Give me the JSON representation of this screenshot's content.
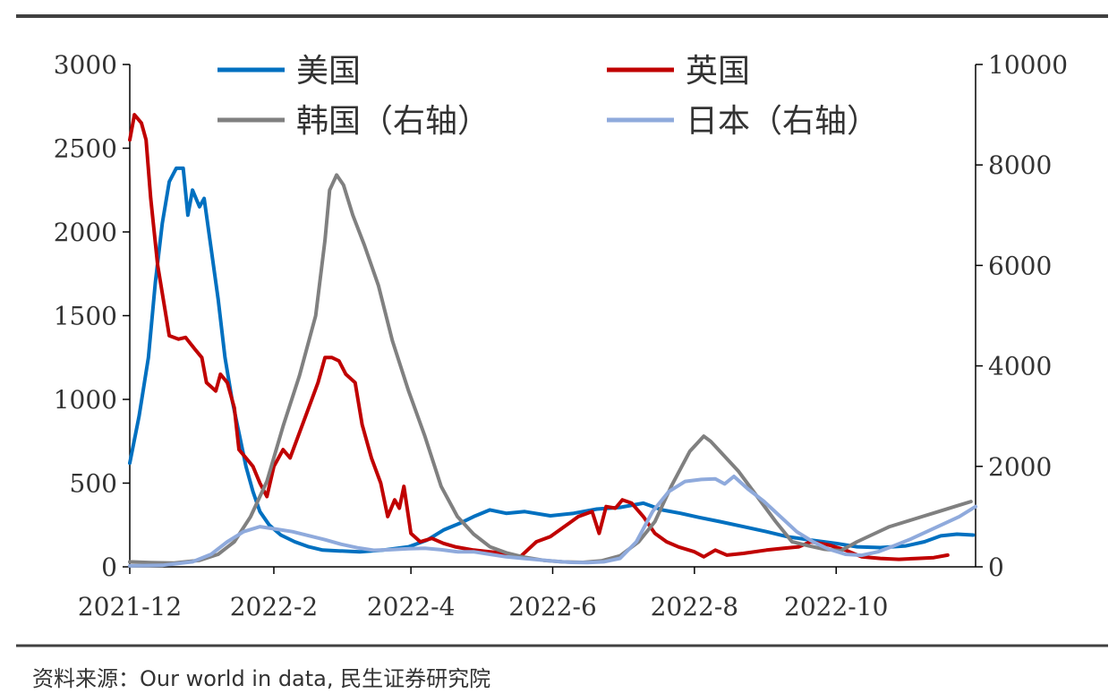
{
  "source_note": "资料来源：Our world in data, 民生证券研究院",
  "chart_data": {
    "type": "line",
    "x_ticks": [
      "2021-12",
      "2022-2",
      "2022-4",
      "2022-6",
      "2022-8",
      "2022-10"
    ],
    "x_range": [
      "2021-12-01",
      "2022-11-30"
    ],
    "y_left": {
      "range": [
        0,
        3000
      ],
      "ticks": [
        0,
        500,
        1000,
        1500,
        2000,
        2500,
        3000
      ]
    },
    "y_right": {
      "range": [
        0,
        10000
      ],
      "ticks": [
        0,
        2000,
        4000,
        6000,
        8000,
        10000
      ]
    },
    "legend_position": "top",
    "series": [
      {
        "name": "美国",
        "axis": "left",
        "color": "#0070C0",
        "points": [
          [
            "2021-12-01",
            620
          ],
          [
            "2021-12-05",
            900
          ],
          [
            "2021-12-09",
            1250
          ],
          [
            "2021-12-12",
            1700
          ],
          [
            "2021-12-15",
            2050
          ],
          [
            "2021-12-18",
            2300
          ],
          [
            "2021-12-21",
            2380
          ],
          [
            "2021-12-24",
            2380
          ],
          [
            "2021-12-26",
            2100
          ],
          [
            "2021-12-28",
            2250
          ],
          [
            "2021-12-31",
            2150
          ],
          [
            "2022-01-02",
            2200
          ],
          [
            "2022-01-05",
            1900
          ],
          [
            "2022-01-08",
            1600
          ],
          [
            "2022-01-11",
            1250
          ],
          [
            "2022-01-14",
            1000
          ],
          [
            "2022-01-17",
            800
          ],
          [
            "2022-01-20",
            600
          ],
          [
            "2022-01-23",
            450
          ],
          [
            "2022-01-26",
            330
          ],
          [
            "2022-01-30",
            250
          ],
          [
            "2022-02-04",
            190
          ],
          [
            "2022-02-10",
            150
          ],
          [
            "2022-02-16",
            120
          ],
          [
            "2022-02-22",
            100
          ],
          [
            "2022-03-01",
            95
          ],
          [
            "2022-03-10",
            90
          ],
          [
            "2022-03-20",
            100
          ],
          [
            "2022-03-31",
            120
          ],
          [
            "2022-04-08",
            160
          ],
          [
            "2022-04-15",
            220
          ],
          [
            "2022-04-22",
            260
          ],
          [
            "2022-04-28",
            300
          ],
          [
            "2022-05-05",
            340
          ],
          [
            "2022-05-12",
            320
          ],
          [
            "2022-05-20",
            330
          ],
          [
            "2022-05-31",
            305
          ],
          [
            "2022-06-10",
            320
          ],
          [
            "2022-06-20",
            345
          ],
          [
            "2022-06-30",
            355
          ],
          [
            "2022-07-10",
            380
          ],
          [
            "2022-07-18",
            340
          ],
          [
            "2022-07-26",
            320
          ],
          [
            "2022-08-03",
            295
          ],
          [
            "2022-08-12",
            270
          ],
          [
            "2022-08-22",
            240
          ],
          [
            "2022-09-01",
            210
          ],
          [
            "2022-09-10",
            180
          ],
          [
            "2022-09-20",
            160
          ],
          [
            "2022-10-01",
            140
          ],
          [
            "2022-10-10",
            120
          ],
          [
            "2022-10-20",
            115
          ],
          [
            "2022-10-31",
            125
          ],
          [
            "2022-11-08",
            150
          ],
          [
            "2022-11-15",
            185
          ],
          [
            "2022-11-22",
            195
          ],
          [
            "2022-11-29",
            190
          ]
        ]
      },
      {
        "name": "英国",
        "axis": "left",
        "color": "#C00000",
        "points": [
          [
            "2021-12-01",
            2550
          ],
          [
            "2021-12-03",
            2700
          ],
          [
            "2021-12-06",
            2650
          ],
          [
            "2021-12-08",
            2550
          ],
          [
            "2021-12-10",
            2200
          ],
          [
            "2021-12-13",
            1800
          ],
          [
            "2021-12-16",
            1550
          ],
          [
            "2021-12-18",
            1380
          ],
          [
            "2021-12-22",
            1360
          ],
          [
            "2021-12-25",
            1370
          ],
          [
            "2021-12-29",
            1300
          ],
          [
            "2022-01-01",
            1250
          ],
          [
            "2022-01-03",
            1100
          ],
          [
            "2022-01-07",
            1050
          ],
          [
            "2022-01-09",
            1150
          ],
          [
            "2022-01-12",
            1100
          ],
          [
            "2022-01-15",
            950
          ],
          [
            "2022-01-17",
            700
          ],
          [
            "2022-01-20",
            650
          ],
          [
            "2022-01-23",
            600
          ],
          [
            "2022-01-26",
            500
          ],
          [
            "2022-01-29",
            420
          ],
          [
            "2022-02-01",
            600
          ],
          [
            "2022-02-05",
            700
          ],
          [
            "2022-02-08",
            650
          ],
          [
            "2022-02-12",
            800
          ],
          [
            "2022-02-16",
            950
          ],
          [
            "2022-02-20",
            1100
          ],
          [
            "2022-02-23",
            1250
          ],
          [
            "2022-02-26",
            1250
          ],
          [
            "2022-03-01",
            1230
          ],
          [
            "2022-03-04",
            1150
          ],
          [
            "2022-03-08",
            1100
          ],
          [
            "2022-03-11",
            850
          ],
          [
            "2022-03-15",
            650
          ],
          [
            "2022-03-19",
            500
          ],
          [
            "2022-03-22",
            300
          ],
          [
            "2022-03-25",
            400
          ],
          [
            "2022-03-27",
            350
          ],
          [
            "2022-03-29",
            480
          ],
          [
            "2022-04-01",
            200
          ],
          [
            "2022-04-05",
            150
          ],
          [
            "2022-04-10",
            170
          ],
          [
            "2022-04-15",
            140
          ],
          [
            "2022-04-20",
            120
          ],
          [
            "2022-04-28",
            100
          ],
          [
            "2022-05-05",
            90
          ],
          [
            "2022-05-12",
            80
          ],
          [
            "2022-05-18",
            60
          ],
          [
            "2022-05-25",
            150
          ],
          [
            "2022-05-31",
            180
          ],
          [
            "2022-06-07",
            250
          ],
          [
            "2022-06-12",
            300
          ],
          [
            "2022-06-18",
            330
          ],
          [
            "2022-06-21",
            200
          ],
          [
            "2022-06-24",
            360
          ],
          [
            "2022-06-28",
            350
          ],
          [
            "2022-07-01",
            400
          ],
          [
            "2022-07-05",
            380
          ],
          [
            "2022-07-10",
            300
          ],
          [
            "2022-07-15",
            200
          ],
          [
            "2022-07-20",
            150
          ],
          [
            "2022-07-25",
            120
          ],
          [
            "2022-08-01",
            90
          ],
          [
            "2022-08-05",
            60
          ],
          [
            "2022-08-10",
            100
          ],
          [
            "2022-08-15",
            70
          ],
          [
            "2022-08-22",
            80
          ],
          [
            "2022-09-01",
            100
          ],
          [
            "2022-09-08",
            110
          ],
          [
            "2022-09-15",
            120
          ],
          [
            "2022-09-20",
            150
          ],
          [
            "2022-09-28",
            130
          ],
          [
            "2022-10-05",
            100
          ],
          [
            "2022-10-12",
            60
          ],
          [
            "2022-10-20",
            50
          ],
          [
            "2022-10-28",
            45
          ],
          [
            "2022-11-05",
            50
          ],
          [
            "2022-11-12",
            55
          ],
          [
            "2022-11-18",
            70
          ]
        ]
      },
      {
        "name": "韩国（右轴）",
        "axis": "right",
        "color": "#808080",
        "points": [
          [
            "2021-12-01",
            100
          ],
          [
            "2021-12-10",
            85
          ],
          [
            "2021-12-20",
            75
          ],
          [
            "2021-12-31",
            130
          ],
          [
            "2022-01-08",
            250
          ],
          [
            "2022-01-15",
            500
          ],
          [
            "2022-01-22",
            1000
          ],
          [
            "2022-01-29",
            1700
          ],
          [
            "2022-02-05",
            2800
          ],
          [
            "2022-02-12",
            3800
          ],
          [
            "2022-02-19",
            5000
          ],
          [
            "2022-02-23",
            6500
          ],
          [
            "2022-02-25",
            7500
          ],
          [
            "2022-02-28",
            7800
          ],
          [
            "2022-03-03",
            7600
          ],
          [
            "2022-03-07",
            7000
          ],
          [
            "2022-03-12",
            6400
          ],
          [
            "2022-03-18",
            5600
          ],
          [
            "2022-03-24",
            4500
          ],
          [
            "2022-03-31",
            3500
          ],
          [
            "2022-04-07",
            2600
          ],
          [
            "2022-04-14",
            1600
          ],
          [
            "2022-04-21",
            1000
          ],
          [
            "2022-04-28",
            650
          ],
          [
            "2022-05-05",
            400
          ],
          [
            "2022-05-12",
            280
          ],
          [
            "2022-05-19",
            200
          ],
          [
            "2022-05-28",
            130
          ],
          [
            "2022-06-05",
            100
          ],
          [
            "2022-06-14",
            90
          ],
          [
            "2022-06-22",
            120
          ],
          [
            "2022-06-30",
            220
          ],
          [
            "2022-07-08",
            500
          ],
          [
            "2022-07-15",
            900
          ],
          [
            "2022-07-22",
            1600
          ],
          [
            "2022-07-30",
            2300
          ],
          [
            "2022-08-05",
            2600
          ],
          [
            "2022-08-08",
            2500
          ],
          [
            "2022-08-12",
            2300
          ],
          [
            "2022-08-20",
            1900
          ],
          [
            "2022-08-28",
            1400
          ],
          [
            "2022-09-05",
            900
          ],
          [
            "2022-09-12",
            500
          ],
          [
            "2022-09-19",
            420
          ],
          [
            "2022-09-26",
            350
          ],
          [
            "2022-10-03",
            320
          ],
          [
            "2022-10-10",
            500
          ],
          [
            "2022-10-17",
            650
          ],
          [
            "2022-10-24",
            800
          ],
          [
            "2022-10-31",
            900
          ],
          [
            "2022-11-07",
            1000
          ],
          [
            "2022-11-14",
            1100
          ],
          [
            "2022-11-21",
            1200
          ],
          [
            "2022-11-28",
            1300
          ]
        ]
      },
      {
        "name": "日本（右轴）",
        "axis": "right",
        "color": "#8FAADC",
        "points": [
          [
            "2021-12-01",
            20
          ],
          [
            "2021-12-15",
            30
          ],
          [
            "2021-12-28",
            100
          ],
          [
            "2022-01-05",
            250
          ],
          [
            "2022-01-12",
            500
          ],
          [
            "2022-01-19",
            700
          ],
          [
            "2022-01-26",
            800
          ],
          [
            "2022-02-02",
            750
          ],
          [
            "2022-02-09",
            700
          ],
          [
            "2022-02-16",
            620
          ],
          [
            "2022-02-23",
            540
          ],
          [
            "2022-03-02",
            450
          ],
          [
            "2022-03-09",
            380
          ],
          [
            "2022-03-16",
            330
          ],
          [
            "2022-03-23",
            340
          ],
          [
            "2022-03-31",
            360
          ],
          [
            "2022-04-07",
            370
          ],
          [
            "2022-04-14",
            340
          ],
          [
            "2022-04-21",
            300
          ],
          [
            "2022-04-28",
            300
          ],
          [
            "2022-05-05",
            250
          ],
          [
            "2022-05-12",
            200
          ],
          [
            "2022-05-19",
            170
          ],
          [
            "2022-05-26",
            140
          ],
          [
            "2022-06-02",
            110
          ],
          [
            "2022-06-09",
            90
          ],
          [
            "2022-06-16",
            85
          ],
          [
            "2022-06-23",
            100
          ],
          [
            "2022-06-30",
            170
          ],
          [
            "2022-07-07",
            500
          ],
          [
            "2022-07-14",
            1100
          ],
          [
            "2022-07-21",
            1500
          ],
          [
            "2022-07-28",
            1700
          ],
          [
            "2022-08-04",
            1740
          ],
          [
            "2022-08-10",
            1750
          ],
          [
            "2022-08-14",
            1650
          ],
          [
            "2022-08-18",
            1800
          ],
          [
            "2022-08-24",
            1550
          ],
          [
            "2022-08-31",
            1300
          ],
          [
            "2022-09-07",
            1000
          ],
          [
            "2022-09-14",
            700
          ],
          [
            "2022-09-21",
            500
          ],
          [
            "2022-09-28",
            350
          ],
          [
            "2022-10-05",
            250
          ],
          [
            "2022-10-12",
            230
          ],
          [
            "2022-10-19",
            300
          ],
          [
            "2022-10-26",
            420
          ],
          [
            "2022-11-02",
            550
          ],
          [
            "2022-11-09",
            700
          ],
          [
            "2022-11-16",
            850
          ],
          [
            "2022-11-23",
            1000
          ],
          [
            "2022-11-30",
            1200
          ]
        ]
      }
    ]
  }
}
